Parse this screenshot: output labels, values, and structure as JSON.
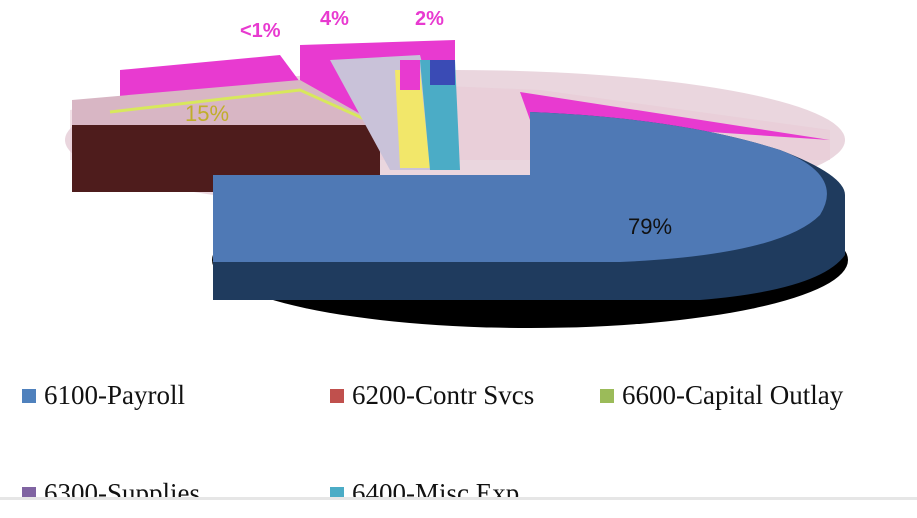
{
  "chart_data": {
    "type": "pie",
    "labels": [
      "6100-Payroll",
      "6200-Contr Svcs",
      "6600-Capital Outlay",
      "6300-Supplies",
      "6400-Misc Exp"
    ],
    "values": [
      79,
      15,
      0.5,
      4,
      2
    ],
    "data_labels": [
      "79%",
      "15%",
      "<1%",
      "4%",
      "2%"
    ],
    "colors": [
      "#4f81bd",
      "#c0504d",
      "#9bbb59",
      "#8064a2",
      "#4bacc6"
    ],
    "legend_placement": "bottom",
    "three_d": true
  }
}
